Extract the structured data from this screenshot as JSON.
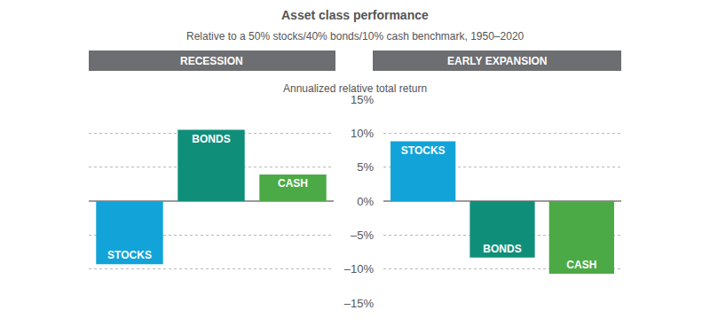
{
  "title": "Asset class performance",
  "subtitle": "Relative to a 50% stocks/40% bonds/10% cash benchmark, 1950–2020",
  "y_label": "Annualized relative total return",
  "chart_data": [
    {
      "type": "bar",
      "title": "RECESSION",
      "categories": [
        "STOCKS",
        "BONDS",
        "CASH"
      ],
      "values": [
        -9.3,
        10.5,
        3.9
      ],
      "colors": [
        "#12a3d8",
        "#0f8f7a",
        "#4caa46"
      ],
      "ylim": [
        -15,
        15
      ],
      "yticks": [
        {
          "value": -15,
          "label": "–15%"
        },
        {
          "value": -10,
          "label": "–10%"
        },
        {
          "value": -5,
          "label": "–5%"
        },
        {
          "value": 0,
          "label": "0%"
        },
        {
          "value": 5,
          "label": "5%"
        },
        {
          "value": 10,
          "label": "10%"
        },
        {
          "value": 15,
          "label": "15%"
        }
      ],
      "grid": true,
      "tick_labels": false
    },
    {
      "type": "bar",
      "title": "EARLY EXPANSION",
      "categories": [
        "STOCKS",
        "BONDS",
        "CASH"
      ],
      "values": [
        8.8,
        -8.3,
        -10.7
      ],
      "colors": [
        "#12a3d8",
        "#0f8f7a",
        "#4caa46"
      ],
      "ylim": [
        -15,
        15
      ],
      "yticks": [
        {
          "value": -15,
          "label": "–15%"
        },
        {
          "value": -10,
          "label": "–10%"
        },
        {
          "value": -5,
          "label": "–5%"
        },
        {
          "value": 0,
          "label": "0%"
        },
        {
          "value": 5,
          "label": "5%"
        },
        {
          "value": 10,
          "label": "10%"
        },
        {
          "value": 15,
          "label": "15%"
        }
      ],
      "grid": true,
      "tick_labels": "y"
    }
  ]
}
